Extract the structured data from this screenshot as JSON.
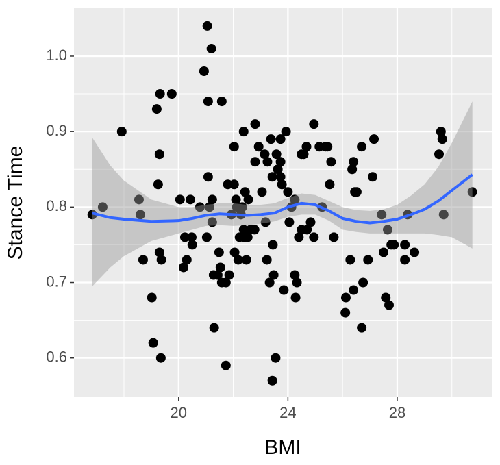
{
  "chart_data": {
    "type": "scatter",
    "x_label": "BMI",
    "y_label": "Stance Time",
    "xlim": [
      16.17,
      31.46
    ],
    "ylim": [
      0.548,
      1.0635
    ],
    "xticks": [
      20,
      24,
      28
    ],
    "yticks": [
      0.6,
      0.7,
      0.8,
      0.9,
      {
        "value": 1,
        "label": "1.0"
      }
    ],
    "x_minor_grid": [
      18,
      22,
      26,
      30
    ],
    "y_minor_grid": [
      0.65,
      0.75,
      0.85,
      0.95
    ],
    "grid": true,
    "point_color": "#000000",
    "x": [
      16.84,
      17.22,
      17.92,
      18.55,
      18.6,
      18.7,
      19.02,
      19.07,
      19.2,
      19.32,
      19.75,
      19.3,
      19.25,
      19.3,
      19.37,
      19.35,
      20.05,
      20.43,
      20.23,
      20.48,
      20.18,
      20.3,
      20.5,
      20.78,
      20.93,
      21.05,
      21.2,
      21.08,
      21.58,
      21.08,
      21.03,
      21.13,
      21.23,
      21.23,
      21.28,
      21.3,
      21.43,
      21.48,
      21.53,
      21.58,
      21.73,
      21.73,
      21.8,
      21.85,
      22.03,
      22.03,
      22.1,
      22.13,
      21.93,
      22.05,
      22.18,
      22.23,
      22.28,
      22.33,
      22.38,
      22.43,
      22.38,
      22.4,
      22.48,
      22.53,
      22.55,
      22.63,
      22.8,
      22.8,
      22.78,
      22.93,
      23.05,
      23.15,
      23.25,
      23.23,
      23.18,
      23.33,
      23.38,
      23.43,
      23.45,
      23.43,
      23.55,
      23.48,
      23.58,
      23.63,
      23.73,
      23.73,
      23.73,
      23.78,
      23.93,
      23.85,
      24.0,
      24.05,
      24.13,
      24.25,
      24.25,
      24.33,
      24.28,
      24.4,
      24.5,
      24.5,
      24.58,
      24.68,
      24.7,
      24.83,
      24.95,
      24.95,
      25.15,
      25.25,
      25.38,
      25.45,
      25.53,
      25.58,
      25.68,
      26.1,
      26.12,
      26.28,
      26.35,
      26.4,
      26.4,
      26.45,
      26.52,
      26.7,
      26.7,
      26.75,
      26.93,
      27.1,
      27.15,
      27.43,
      27.5,
      27.58,
      27.65,
      27.7,
      27.78,
      27.88,
      28.28,
      28.28,
      28.38,
      28.63,
      29.53,
      29.6,
      29.65,
      29.7,
      30.75
    ],
    "values": [
      0.79,
      0.8,
      0.9,
      0.81,
      0.79,
      0.73,
      0.68,
      0.62,
      0.93,
      0.95,
      0.95,
      0.87,
      0.83,
      0.74,
      0.73,
      0.6,
      0.81,
      0.81,
      0.76,
      0.76,
      0.72,
      0.73,
      0.75,
      0.8,
      0.98,
      1.04,
      1.01,
      0.94,
      0.94,
      0.84,
      0.76,
      0.8,
      0.81,
      0.78,
      0.71,
      0.64,
      0.71,
      0.74,
      0.72,
      0.7,
      0.7,
      0.59,
      0.83,
      0.71,
      0.88,
      0.83,
      0.81,
      0.8,
      0.79,
      0.74,
      0.73,
      0.76,
      0.79,
      0.8,
      0.9,
      0.82,
      0.77,
      0.76,
      0.73,
      0.76,
      0.81,
      0.77,
      0.91,
      0.86,
      0.77,
      0.88,
      0.82,
      0.87,
      0.86,
      0.73,
      0.78,
      0.7,
      0.89,
      0.84,
      0.75,
      0.57,
      0.6,
      0.71,
      0.87,
      0.85,
      0.89,
      0.86,
      0.84,
      0.83,
      0.9,
      0.69,
      0.82,
      0.78,
      0.8,
      0.81,
      0.71,
      0.7,
      0.68,
      0.76,
      0.87,
      0.77,
      0.87,
      0.88,
      0.77,
      0.78,
      0.76,
      0.91,
      0.88,
      0.8,
      0.88,
      0.88,
      0.83,
      0.86,
      0.76,
      0.66,
      0.68,
      0.73,
      0.85,
      0.86,
      0.69,
      0.82,
      0.82,
      0.88,
      0.64,
      0.7,
      0.73,
      0.84,
      0.89,
      0.79,
      0.74,
      0.68,
      0.77,
      0.67,
      0.75,
      0.75,
      0.75,
      0.73,
      0.79,
      0.74,
      0.87,
      0.9,
      0.89,
      0.79,
      0.82
    ],
    "smooth": {
      "color": "#3366ff",
      "band_color": "#999999",
      "x": [
        16.84,
        17.5,
        18,
        19,
        20,
        20.5,
        21,
        21.5,
        22,
        22.5,
        23,
        23.5,
        24,
        24.5,
        25,
        25.5,
        26,
        26.5,
        27,
        27.5,
        28,
        28.5,
        29,
        29.5,
        30,
        30.75
      ],
      "values": [
        0.792,
        0.786,
        0.784,
        0.781,
        0.782,
        0.785,
        0.789,
        0.791,
        0.79,
        0.789,
        0.79,
        0.792,
        0.8,
        0.805,
        0.803,
        0.795,
        0.785,
        0.781,
        0.779,
        0.781,
        0.784,
        0.79,
        0.797,
        0.808,
        0.822,
        0.843
      ],
      "lower": [
        0.695,
        0.72,
        0.735,
        0.755,
        0.765,
        0.77,
        0.775,
        0.776,
        0.775,
        0.776,
        0.778,
        0.781,
        0.787,
        0.79,
        0.79,
        0.782,
        0.77,
        0.767,
        0.765,
        0.765,
        0.765,
        0.765,
        0.765,
        0.763,
        0.76,
        0.745
      ],
      "upper": [
        0.892,
        0.855,
        0.835,
        0.81,
        0.8,
        0.8,
        0.803,
        0.805,
        0.805,
        0.803,
        0.803,
        0.805,
        0.812,
        0.818,
        0.816,
        0.808,
        0.8,
        0.796,
        0.795,
        0.797,
        0.803,
        0.815,
        0.83,
        0.853,
        0.885,
        0.94
      ]
    }
  }
}
